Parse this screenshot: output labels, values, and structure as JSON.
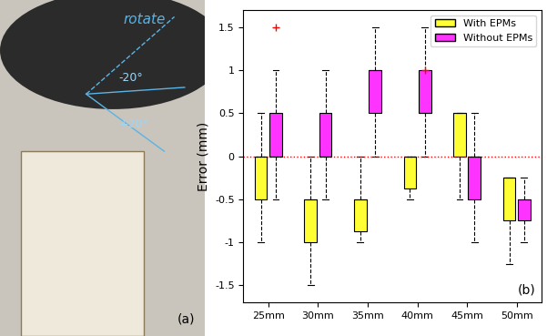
{
  "chart_data": [
    {
      "type": "photo",
      "annotations": [
        "rotate",
        "-20°",
        "+20°",
        "(a)"
      ]
    },
    {
      "type": "box",
      "y_label": "Error (mm)",
      "annotations": [
        "(b)"
      ],
      "categories": [
        "25mm",
        "30mm",
        "35mm",
        "40mm",
        "45mm",
        "50mm"
      ],
      "ylim": [
        -1.7,
        1.7
      ],
      "yticks": [
        -1.5,
        -1,
        -0.5,
        0,
        0.5,
        1,
        1.5
      ],
      "hline": 0,
      "legend": "upper right",
      "marker": "+",
      "series": [
        {
          "name": "With EPMs",
          "color": "#ffff33",
          "stats": [
            {
              "whislo": -1,
              "q1": -0.5,
              "med": 0,
              "q3": 0,
              "whishi": 0.5,
              "fliers": []
            },
            {
              "whislo": -1.5,
              "q1": -1,
              "med": -0.5,
              "q3": -0.5,
              "whishi": 0,
              "fliers": []
            },
            {
              "whislo": -1,
              "q1": -0.875,
              "med": -0.5,
              "q3": -0.5,
              "whishi": 0,
              "fliers": []
            },
            {
              "whislo": -0.5,
              "q1": -0.375,
              "med": 0,
              "q3": 0,
              "whishi": 0,
              "fliers": []
            },
            {
              "whislo": -0.5,
              "q1": 0,
              "med": 0.5,
              "q3": 0.5,
              "whishi": 0.5,
              "fliers": []
            },
            {
              "whislo": -1.25,
              "q1": -0.75,
              "med": -0.25,
              "q3": -0.25,
              "whishi": -0.25,
              "fliers": []
            }
          ]
        },
        {
          "name": "Without EPMs",
          "color": "#ff33ff",
          "stats": [
            {
              "whislo": -0.5,
              "q1": 0,
              "med": 0,
              "q3": 0.5,
              "whishi": 1,
              "fliers": [
                1.5
              ]
            },
            {
              "whislo": -0.5,
              "q1": 0,
              "med": 0,
              "q3": 0.5,
              "whishi": 1,
              "fliers": []
            },
            {
              "whislo": 0,
              "q1": 0.5,
              "med": 1,
              "q3": 1,
              "whishi": 1.5,
              "fliers": []
            },
            {
              "whislo": 0,
              "q1": 0.5,
              "med": 0.5,
              "q3": 1,
              "whishi": 1.5,
              "fliers": [
                1
              ]
            },
            {
              "whislo": -1,
              "q1": -0.5,
              "med": 0,
              "q3": 0,
              "whishi": 0.5,
              "fliers": []
            },
            {
              "whislo": -1,
              "q1": -0.75,
              "med": -0.5,
              "q3": -0.5,
              "whishi": -0.25,
              "fliers": []
            }
          ]
        }
      ]
    }
  ]
}
